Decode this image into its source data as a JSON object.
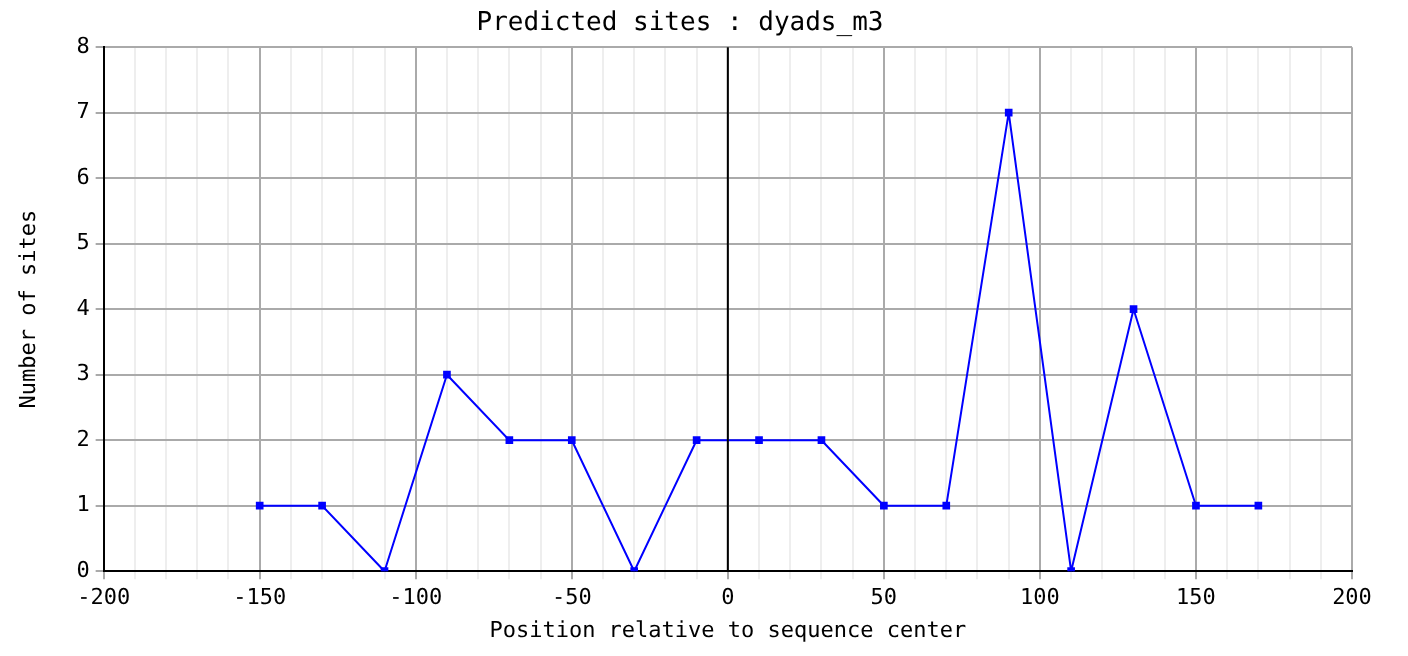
{
  "chart_data": {
    "type": "line",
    "title": "Predicted sites : dyads_m3",
    "xlabel": "Position relative to sequence center",
    "ylabel": "Number of sites",
    "x": [
      -150,
      -130,
      -110,
      -90,
      -70,
      -50,
      -30,
      -10,
      10,
      30,
      50,
      70,
      90,
      110,
      130,
      150,
      170
    ],
    "series": [
      {
        "color": "#0000ff",
        "values": [
          1,
          1,
          0,
          3,
          2,
          2,
          0,
          2,
          2,
          2,
          1,
          1,
          7,
          0,
          4,
          1,
          1
        ]
      }
    ],
    "xlim": [
      -200,
      200
    ],
    "xticks": [
      -200,
      {
        "value": -190,
        "label": null
      },
      {
        "value": -180,
        "label": null
      },
      {
        "value": -170,
        "label": null
      },
      {
        "value": -160,
        "label": null
      },
      -150,
      {
        "value": -140,
        "label": null
      },
      {
        "value": -130,
        "label": null
      },
      {
        "value": -120,
        "label": null
      },
      {
        "value": -110,
        "label": null
      },
      -100,
      {
        "value": -90,
        "label": null
      },
      {
        "value": -80,
        "label": null
      },
      {
        "value": -70,
        "label": null
      },
      {
        "value": -60,
        "label": null
      },
      -50,
      {
        "value": -40,
        "label": null
      },
      {
        "value": -30,
        "label": null
      },
      {
        "value": -20,
        "label": null
      },
      {
        "value": -10,
        "label": null
      },
      0,
      {
        "value": 10,
        "label": null
      },
      {
        "value": 20,
        "label": null
      },
      {
        "value": 30,
        "label": null
      },
      {
        "value": 40,
        "label": null
      },
      50,
      {
        "value": 60,
        "label": null
      },
      {
        "value": 70,
        "label": null
      },
      {
        "value": 80,
        "label": null
      },
      {
        "value": 90,
        "label": null
      },
      100,
      {
        "value": 110,
        "label": null
      },
      {
        "value": 120,
        "label": null
      },
      {
        "value": 130,
        "label": null
      },
      {
        "value": 140,
        "label": null
      },
      150,
      {
        "value": 160,
        "label": null
      },
      {
        "value": 170,
        "label": null
      },
      {
        "value": 180,
        "label": null
      },
      {
        "value": 190,
        "label": null
      },
      200
    ],
    "ylim": [
      0,
      8
    ],
    "yticks": [
      0,
      1,
      2,
      3,
      4,
      5,
      6,
      7,
      8
    ],
    "ref_lines": [
      {
        "axis": "x",
        "value": 0,
        "color": "#000000"
      }
    ],
    "grid": true,
    "legend": false,
    "marker": "square",
    "line_style": "solid"
  }
}
